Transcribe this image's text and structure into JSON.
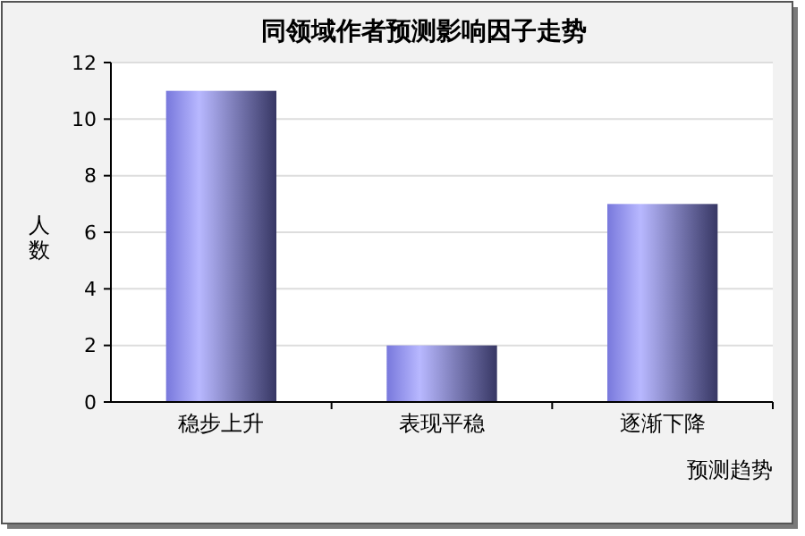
{
  "chart_data": {
    "type": "bar",
    "title": "同领域作者预测影响因子走势",
    "xlabel": "预测趋势",
    "ylabel": "人数",
    "categories": [
      "稳步上升",
      "表现平稳",
      "逐渐下降"
    ],
    "values": [
      11,
      2,
      7
    ],
    "color": "#7878dc",
    "ylim": [
      0,
      12
    ],
    "yticks": [
      0,
      2,
      4,
      6,
      8,
      10,
      12
    ],
    "grid": "y"
  }
}
